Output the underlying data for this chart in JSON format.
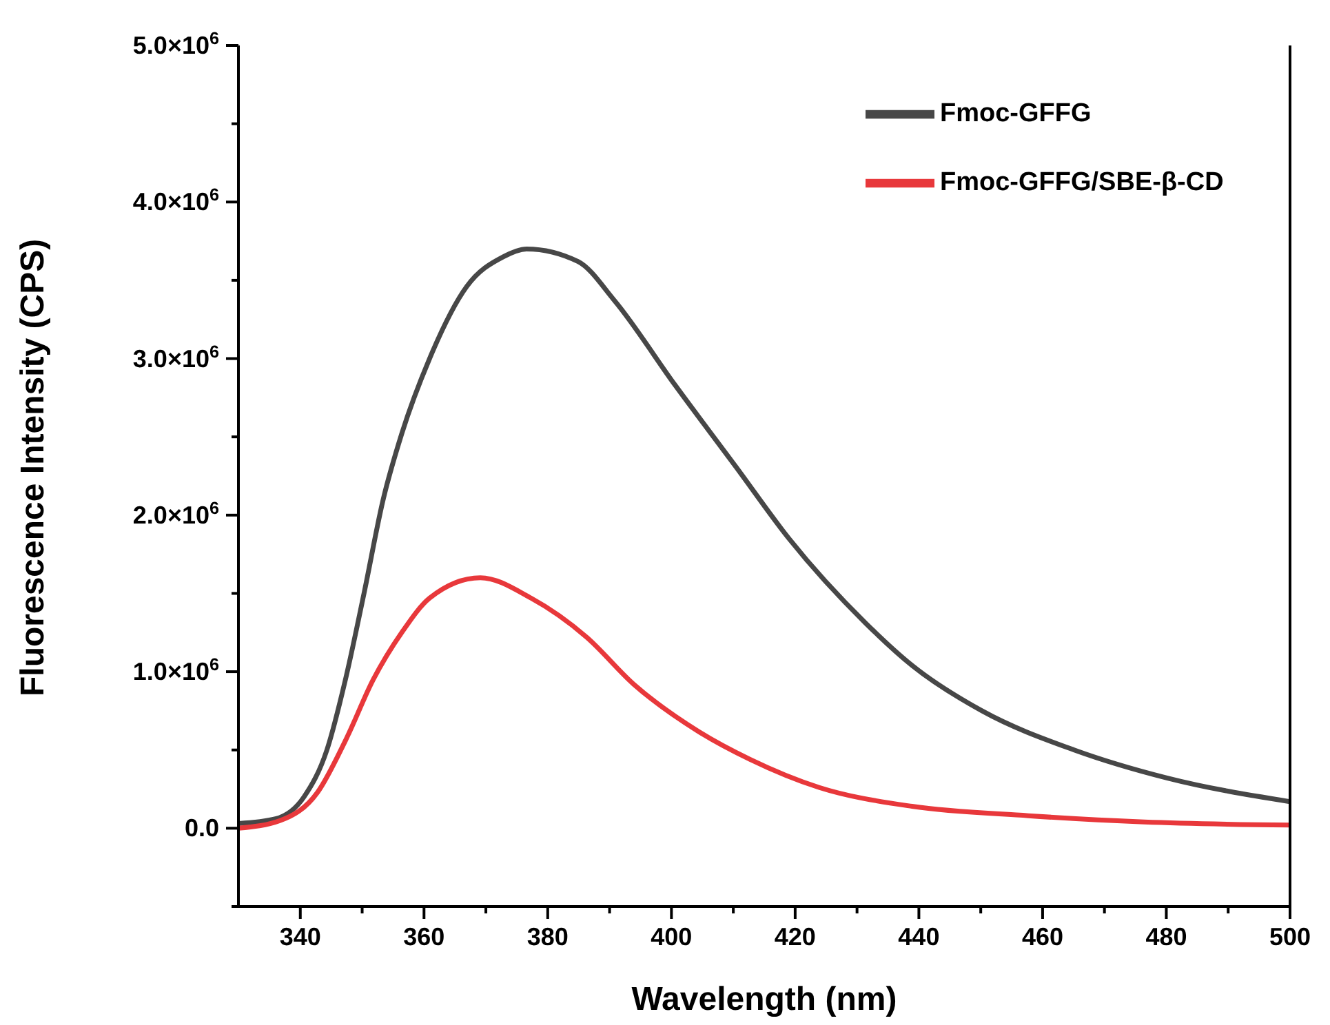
{
  "chart_data": {
    "type": "line",
    "xlabel": "Wavelength (nm)",
    "ylabel": "Fluorescence Intensity (CPS)",
    "xlim": [
      330,
      500
    ],
    "ylim": [
      -500000,
      5000000
    ],
    "xticks": [
      340,
      {
        "value": 350,
        "label": null
      },
      360,
      {
        "value": 370,
        "label": null
      },
      380,
      {
        "value": 390,
        "label": null
      },
      400,
      {
        "value": 410,
        "label": null
      },
      420,
      {
        "value": 430,
        "label": null
      },
      440,
      {
        "value": 450,
        "label": null
      },
      460,
      {
        "value": 470,
        "label": null
      },
      480,
      {
        "value": 490,
        "label": null
      },
      500
    ],
    "yticks": [
      {
        "value": -500000,
        "label": null
      },
      {
        "value": 0,
        "label": "0.0"
      },
      {
        "value": 500000,
        "label": null
      },
      {
        "value": 1000000,
        "label": "1.0×10$^{6}$"
      },
      {
        "value": 1500000,
        "label": null
      },
      {
        "value": 2000000,
        "label": "2.0×10$^{6}$"
      },
      {
        "value": 2500000,
        "label": null
      },
      {
        "value": 3000000,
        "label": "3.0×10$^{6}$"
      },
      {
        "value": 3500000,
        "label": null
      },
      {
        "value": 4000000,
        "label": "4.0×10$^{6}$"
      },
      {
        "value": 4500000,
        "label": null
      },
      {
        "value": 5000000,
        "label": "5.0×10$^{6}$"
      }
    ],
    "legend": "top right",
    "marker": "none",
    "line_style": "solid",
    "series": [
      {
        "name": "Fmoc-GFFG",
        "color": "#474747",
        "x": [
          330,
          336,
          340.6,
          344.3,
          347.3,
          350.3,
          353.4,
          356.4,
          360.9,
          366.9,
          372.8,
          376.6,
          384.9,
          390.8,
          400.6,
          410.4,
          419,
          431.4,
          438.9,
          450.2,
          465.1,
          480.2,
          500
        ],
        "values": [
          30000,
          60000,
          200000,
          500000,
          950000,
          1500000,
          2100000,
          2520000,
          3000000,
          3460000,
          3650000,
          3700000,
          3620000,
          3370000,
          2830000,
          2310000,
          1850000,
          1310000,
          1040000,
          750000,
          500000,
          320000,
          170000
        ]
      },
      {
        "name": "Fmoc-GFFG/SBE-β-CD",
        "color": "#e8383b",
        "x": [
          330,
          336.8,
          342.8,
          347.3,
          351.8,
          356.4,
          360.9,
          369.1,
          377.3,
          386.3,
          393.9,
          404.3,
          412.7,
          423.9,
          438.9,
          457.7,
          476.4,
          500
        ],
        "values": [
          0,
          50000,
          230000,
          560000,
          950000,
          1250000,
          1470000,
          1600000,
          1470000,
          1220000,
          920000,
          620000,
          440000,
          260000,
          140000,
          80000,
          40000,
          20000
        ]
      }
    ]
  }
}
